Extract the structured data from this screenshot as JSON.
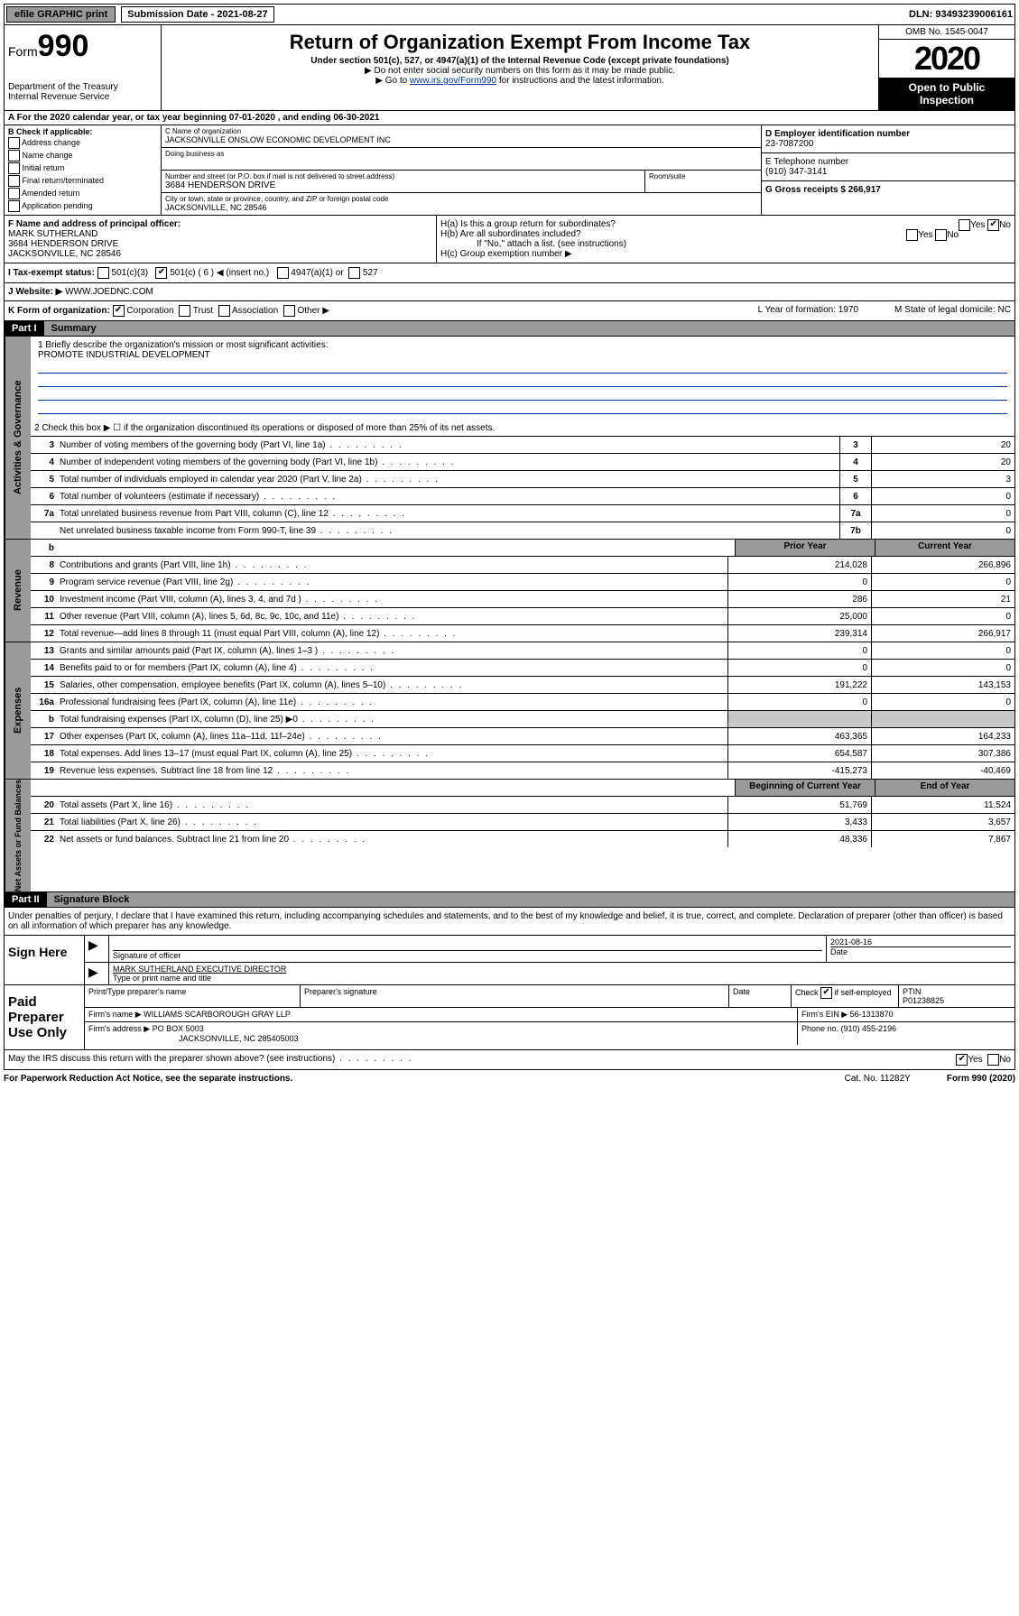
{
  "topbar": {
    "efile": "efile GRAPHIC print",
    "sub_label": "Submission Date - 2021-08-27",
    "dln": "DLN: 93493239006161"
  },
  "header": {
    "form_label": "Form",
    "form_num": "990",
    "dept": "Department of the Treasury\nInternal Revenue Service",
    "title": "Return of Organization Exempt From Income Tax",
    "sub1": "Under section 501(c), 527, or 4947(a)(1) of the Internal Revenue Code (except private foundations)",
    "sub2": "▶ Do not enter social security numbers on this form as it may be made public.",
    "sub3_pre": "▶ Go to ",
    "sub3_link": "www.irs.gov/Form990",
    "sub3_post": " for instructions and the latest information.",
    "omb": "OMB No. 1545-0047",
    "year": "2020",
    "open": "Open to Public Inspection"
  },
  "row_a": "A For the 2020 calendar year, or tax year beginning 07-01-2020    , and ending 06-30-2021",
  "box_b": {
    "label": "B Check if applicable:",
    "items": [
      "Address change",
      "Name change",
      "Initial return",
      "Final return/terminated",
      "Amended return",
      "Application pending"
    ]
  },
  "box_c": {
    "name_label": "C Name of organization",
    "name": "JACKSONVILLE ONSLOW ECONOMIC DEVELOPMENT INC",
    "dba_label": "Doing business as",
    "addr_label": "Number and street (or P.O. box if mail is not delivered to street address)",
    "room_label": "Room/suite",
    "addr": "3684 HENDERSON DRIVE",
    "city_label": "City or town, state or province, country, and ZIP or foreign postal code",
    "city": "JACKSONVILLE, NC  28546"
  },
  "box_d": {
    "ein_label": "D Employer identification number",
    "ein": "23-7087200",
    "phone_label": "E Telephone number",
    "phone": "(910) 347-3141",
    "gross_label": "G Gross receipts $ 266,917"
  },
  "box_f": {
    "label": "F Name and address of principal officer:",
    "name": "MARK SUTHERLAND",
    "addr1": "3684 HENDERSON DRIVE",
    "addr2": "JACKSONVILLE, NC  28546"
  },
  "box_h": {
    "ha": "H(a)  Is this a group return for subordinates?",
    "hb": "H(b)  Are all subordinates included?",
    "hb_note": "If \"No,\" attach a list. (see instructions)",
    "hc": "H(c)  Group exemption number ▶"
  },
  "row_i": {
    "label": "I   Tax-exempt status:",
    "opts": [
      "501(c)(3)",
      "501(c) ( 6 ) ◀ (insert no.)",
      "4947(a)(1) or",
      "527"
    ]
  },
  "row_j": {
    "label": "J   Website: ▶",
    "val": "WWW.JOEDNC.COM"
  },
  "row_k": {
    "label": "K Form of organization:",
    "opts": [
      "Corporation",
      "Trust",
      "Association",
      "Other ▶"
    ],
    "l": "L Year of formation: 1970",
    "m": "M State of legal domicile: NC"
  },
  "part1": {
    "header": "Part I",
    "title": "Summary",
    "q1": "1  Briefly describe the organization's mission or most significant activities:",
    "mission": "PROMOTE INDUSTRIAL DEVELOPMENT",
    "q2": "2   Check this box ▶ ☐  if the organization discontinued its operations or disposed of more than 25% of its net assets."
  },
  "gov_lines": [
    {
      "n": "3",
      "d": "Number of voting members of the governing body (Part VI, line 1a)",
      "box": "3",
      "v": "20"
    },
    {
      "n": "4",
      "d": "Number of independent voting members of the governing body (Part VI, line 1b)",
      "box": "4",
      "v": "20"
    },
    {
      "n": "5",
      "d": "Total number of individuals employed in calendar year 2020 (Part V, line 2a)",
      "box": "5",
      "v": "3"
    },
    {
      "n": "6",
      "d": "Total number of volunteers (estimate if necessary)",
      "box": "6",
      "v": "0"
    },
    {
      "n": "7a",
      "d": "Total unrelated business revenue from Part VIII, column (C), line 12",
      "box": "7a",
      "v": "0"
    },
    {
      "n": "",
      "d": "Net unrelated business taxable income from Form 990-T, line 39",
      "box": "7b",
      "v": "0"
    }
  ],
  "col_headers": {
    "b": "b",
    "prior": "Prior Year",
    "current": "Current Year"
  },
  "rev_lines": [
    {
      "n": "8",
      "d": "Contributions and grants (Part VIII, line 1h)",
      "p": "214,028",
      "c": "266,896"
    },
    {
      "n": "9",
      "d": "Program service revenue (Part VIII, line 2g)",
      "p": "0",
      "c": "0"
    },
    {
      "n": "10",
      "d": "Investment income (Part VIII, column (A), lines 3, 4, and 7d )",
      "p": "286",
      "c": "21"
    },
    {
      "n": "11",
      "d": "Other revenue (Part VIII, column (A), lines 5, 6d, 8c, 9c, 10c, and 11e)",
      "p": "25,000",
      "c": "0"
    },
    {
      "n": "12",
      "d": "Total revenue—add lines 8 through 11 (must equal Part VIII, column (A), line 12)",
      "p": "239,314",
      "c": "266,917"
    }
  ],
  "exp_lines": [
    {
      "n": "13",
      "d": "Grants and similar amounts paid (Part IX, column (A), lines 1–3 )",
      "p": "0",
      "c": "0"
    },
    {
      "n": "14",
      "d": "Benefits paid to or for members (Part IX, column (A), line 4)",
      "p": "0",
      "c": "0"
    },
    {
      "n": "15",
      "d": "Salaries, other compensation, employee benefits (Part IX, column (A), lines 5–10)",
      "p": "191,222",
      "c": "143,153"
    },
    {
      "n": "16a",
      "d": "Professional fundraising fees (Part IX, column (A), line 11e)",
      "p": "0",
      "c": "0"
    },
    {
      "n": "b",
      "d": "Total fundraising expenses (Part IX, column (D), line 25) ▶0",
      "p": "",
      "c": "",
      "shade": true
    },
    {
      "n": "17",
      "d": "Other expenses (Part IX, column (A), lines 11a–11d, 11f–24e)",
      "p": "463,365",
      "c": "164,233"
    },
    {
      "n": "18",
      "d": "Total expenses. Add lines 13–17 (must equal Part IX, column (A), line 25)",
      "p": "654,587",
      "c": "307,386"
    },
    {
      "n": "19",
      "d": "Revenue less expenses. Subtract line 18 from line 12",
      "p": "-415,273",
      "c": "-40,469"
    }
  ],
  "net_headers": {
    "beg": "Beginning of Current Year",
    "end": "End of Year"
  },
  "net_lines": [
    {
      "n": "20",
      "d": "Total assets (Part X, line 16)",
      "p": "51,769",
      "c": "11,524"
    },
    {
      "n": "21",
      "d": "Total liabilities (Part X, line 26)",
      "p": "3,433",
      "c": "3,657"
    },
    {
      "n": "22",
      "d": "Net assets or fund balances. Subtract line 21 from line 20",
      "p": "48,336",
      "c": "7,867"
    }
  ],
  "vtabs": {
    "gov": "Activities & Governance",
    "rev": "Revenue",
    "exp": "Expenses",
    "net": "Net Assets or Fund Balances"
  },
  "part2": {
    "header": "Part II",
    "title": "Signature Block",
    "perjury": "Under penalties of perjury, I declare that I have examined this return, including accompanying schedules and statements, and to the best of my knowledge and belief, it is true, correct, and complete. Declaration of preparer (other than officer) is based on all information of which preparer has any knowledge."
  },
  "sign": {
    "here": "Sign Here",
    "sig_officer": "Signature of officer",
    "date": "2021-08-16",
    "date_label": "Date",
    "name": "MARK SUTHERLAND  EXECUTIVE DIRECTOR",
    "name_label": "Type or print name and title"
  },
  "paid": {
    "label": "Paid Preparer Use Only",
    "h1": "Print/Type preparer's name",
    "h2": "Preparer's signature",
    "h3": "Date",
    "h4_pre": "Check",
    "h4_post": "if self-employed",
    "h5": "PTIN",
    "ptin": "P01238825",
    "firm_name_label": "Firm's name    ▶",
    "firm_name": "WILLIAMS SCARBOROUGH GRAY LLP",
    "firm_ein": "Firm's EIN ▶ 56-1313870",
    "firm_addr_label": "Firm's address ▶",
    "firm_addr": "PO BOX 5003",
    "firm_city": "JACKSONVILLE, NC  285405003",
    "phone": "Phone no. (910) 455-2196"
  },
  "discuss": "May the IRS discuss this return with the preparer shown above? (see instructions)",
  "footer": {
    "left": "For Paperwork Reduction Act Notice, see the separate instructions.",
    "mid": "Cat. No. 11282Y",
    "right": "Form 990 (2020)"
  }
}
